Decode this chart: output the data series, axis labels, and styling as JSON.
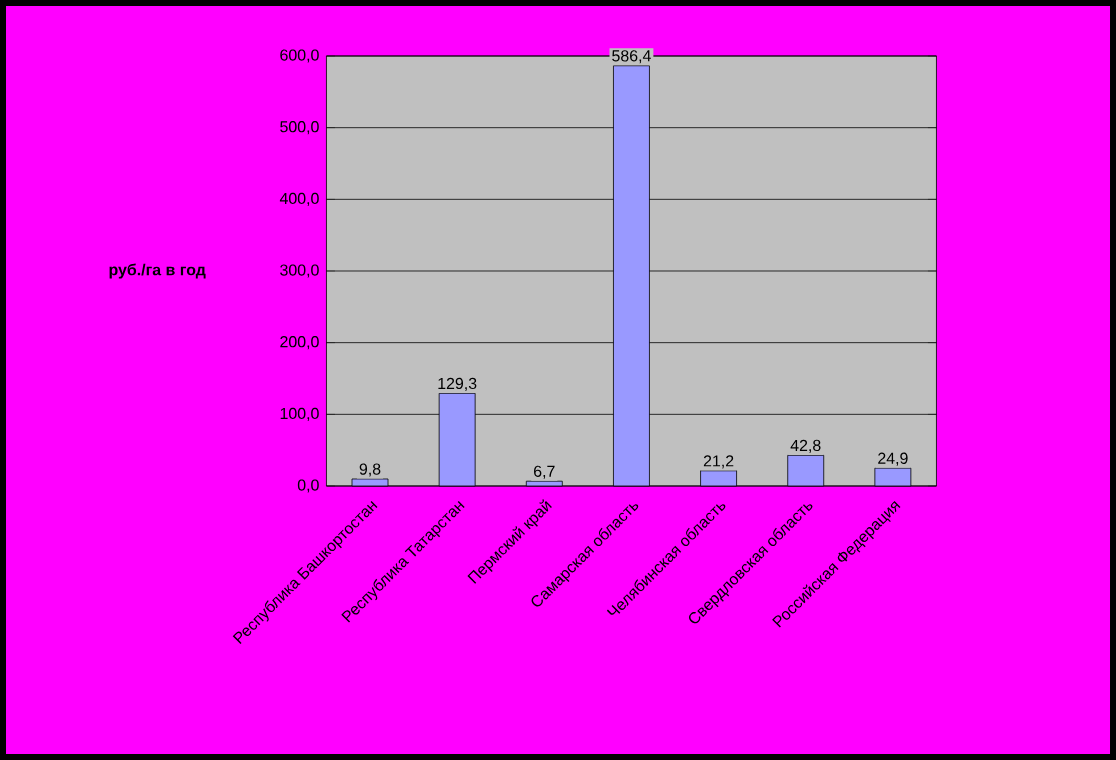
{
  "chart_data": {
    "type": "bar",
    "ylabel": "руб./га в год",
    "categories": [
      "Республика Башкортостан",
      "Республика Татарстан",
      "Пермский край",
      "Самарская область",
      "Челябинская область",
      "Свердловская область",
      "Российская Федерация"
    ],
    "values": [
      9.8,
      129.3,
      6.7,
      586.4,
      21.2,
      42.8,
      24.9
    ],
    "value_labels": [
      "9,8",
      "129,3",
      "6,7",
      "586,4",
      "21,2",
      "42,8",
      "24,9"
    ],
    "color": "#9999ff",
    "ylim": [
      0,
      600
    ],
    "yticks": [
      {
        "value": 0,
        "label": "0,0"
      },
      {
        "value": 100,
        "label": "100,0"
      },
      {
        "value": 200,
        "label": "200,0"
      },
      {
        "value": 300,
        "label": "300,0"
      },
      {
        "value": 400,
        "label": "400,0"
      },
      {
        "value": 500,
        "label": "500,0"
      },
      {
        "value": 600,
        "label": "600,0"
      }
    ],
    "grid": "y"
  }
}
